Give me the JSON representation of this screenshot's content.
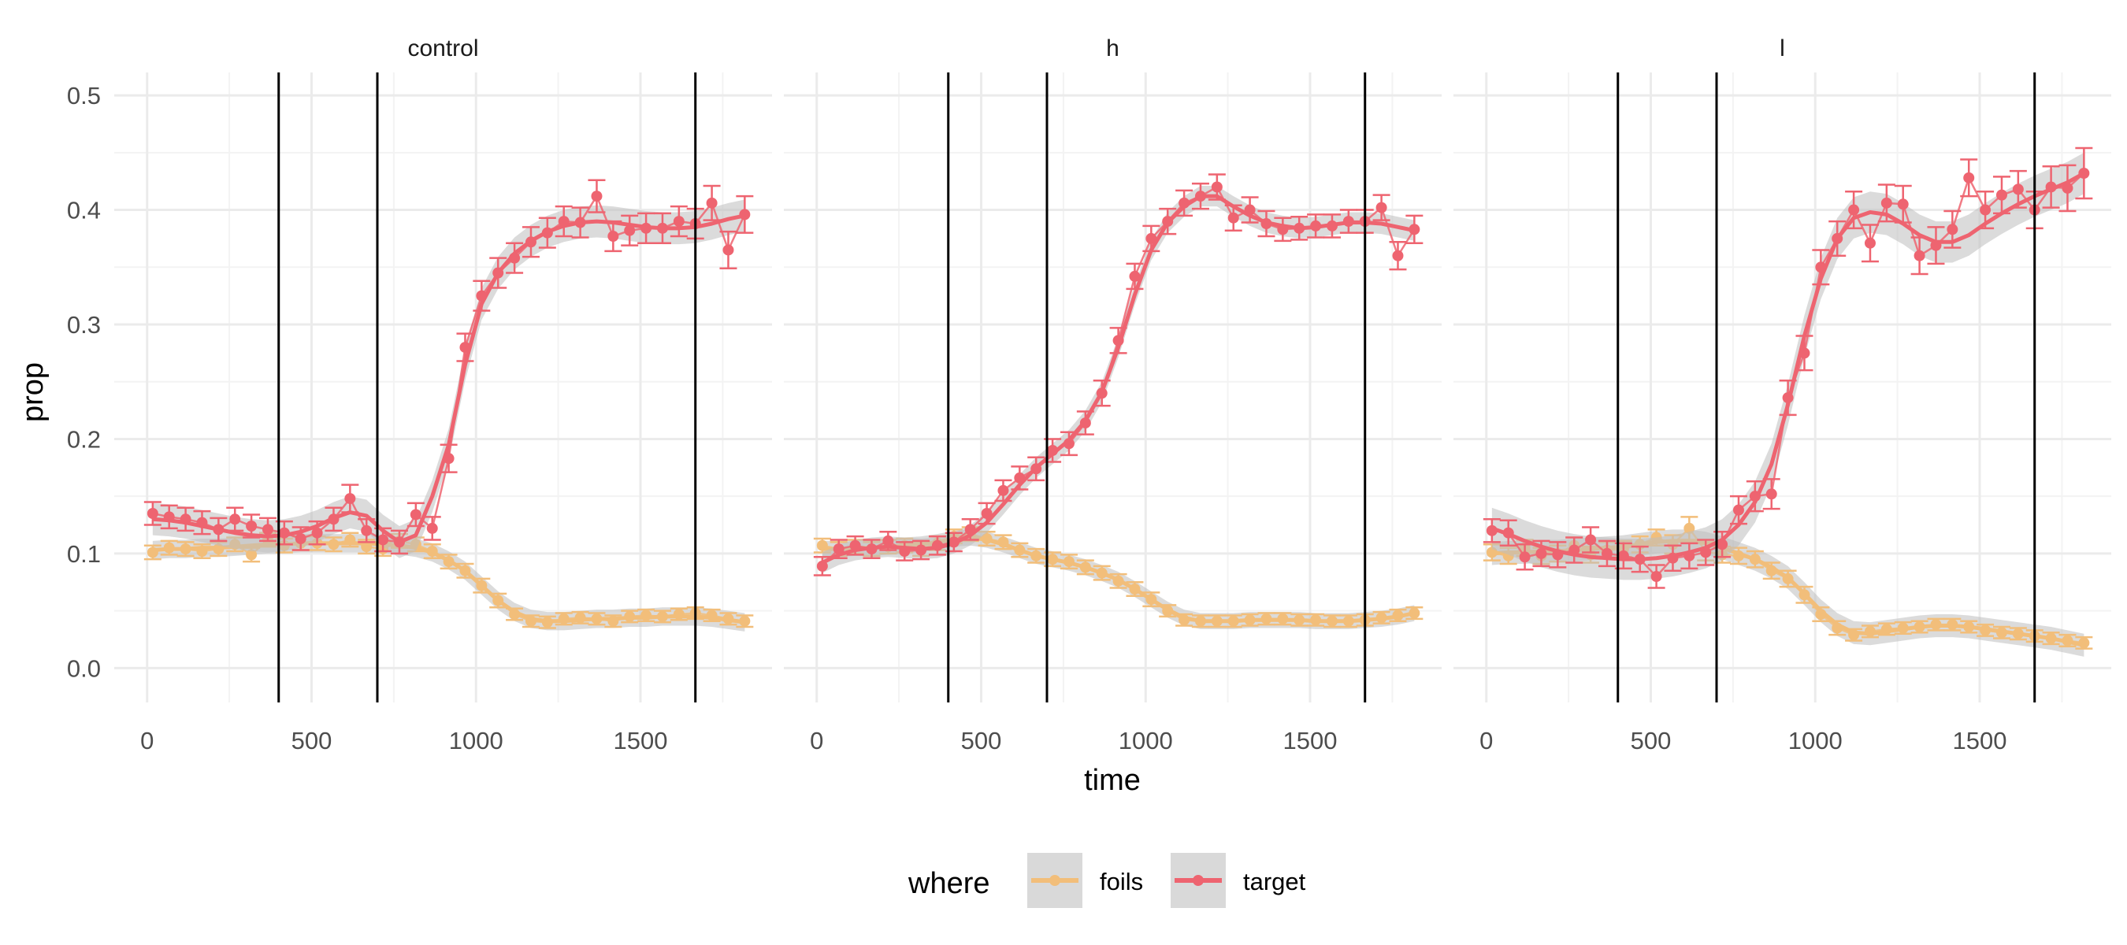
{
  "colors": {
    "background": "#ffffff",
    "grid_major": "#ebebeb",
    "grid_minor": "#f3f3f3",
    "vline": "#000000",
    "ribbon": "#bdbdbd",
    "foils": "#f2be7a",
    "target": "#ee6470"
  },
  "legend": {
    "title": "where",
    "items": [
      {
        "key": "foils",
        "label": "foils"
      },
      {
        "key": "target",
        "label": "target"
      }
    ]
  },
  "chart_data": {
    "type": "line",
    "xlabel": "time",
    "ylabel": "prop",
    "xlim": [
      -100,
      1900
    ],
    "ylim": [
      -0.03,
      0.52
    ],
    "x_ticks": [
      0,
      500,
      1000,
      1500
    ],
    "y_ticks": [
      0.0,
      0.1,
      0.2,
      0.3,
      0.4,
      0.5
    ],
    "y_tick_labels": [
      "0.0",
      "0.1",
      "0.2",
      "0.3",
      "0.4",
      "0.5"
    ],
    "grid": true,
    "legend_position": "bottom",
    "vlines": [
      400,
      700,
      1667
    ],
    "x": [
      17,
      67,
      117,
      167,
      217,
      267,
      317,
      367,
      417,
      467,
      517,
      567,
      617,
      667,
      717,
      767,
      817,
      867,
      917,
      967,
      1017,
      1067,
      1117,
      1167,
      1217,
      1267,
      1317,
      1367,
      1417,
      1467,
      1517,
      1567,
      1617,
      1667,
      1717,
      1767,
      1817
    ],
    "facets": [
      {
        "title": "control",
        "series": [
          {
            "name": "foils",
            "values": [
              0.101,
              0.105,
              0.104,
              0.102,
              0.104,
              0.108,
              0.099,
              0.112,
              0.107,
              0.109,
              0.109,
              0.108,
              0.112,
              0.106,
              0.104,
              0.111,
              0.108,
              0.102,
              0.093,
              0.085,
              0.072,
              0.059,
              0.047,
              0.041,
              0.04,
              0.043,
              0.044,
              0.043,
              0.041,
              0.045,
              0.046,
              0.045,
              0.047,
              0.048,
              0.046,
              0.043,
              0.041
            ],
            "err": [
              0.006,
              0.006,
              0.006,
              0.006,
              0.006,
              0.006,
              0.006,
              0.006,
              0.006,
              0.006,
              0.006,
              0.006,
              0.006,
              0.006,
              0.006,
              0.006,
              0.006,
              0.006,
              0.006,
              0.006,
              0.006,
              0.006,
              0.005,
              0.005,
              0.005,
              0.005,
              0.005,
              0.005,
              0.005,
              0.005,
              0.005,
              0.005,
              0.005,
              0.005,
              0.005,
              0.005,
              0.005
            ],
            "smooth": [
              0.103,
              0.104,
              0.104,
              0.105,
              0.105,
              0.106,
              0.107,
              0.108,
              0.108,
              0.109,
              0.109,
              0.109,
              0.109,
              0.109,
              0.108,
              0.107,
              0.105,
              0.101,
              0.094,
              0.085,
              0.072,
              0.059,
              0.049,
              0.043,
              0.041,
              0.041,
              0.042,
              0.043,
              0.043,
              0.044,
              0.044,
              0.045,
              0.045,
              0.045,
              0.044,
              0.042,
              0.04
            ],
            "band": 0.008
          },
          {
            "name": "target",
            "values": [
              0.135,
              0.132,
              0.13,
              0.127,
              0.121,
              0.13,
              0.124,
              0.121,
              0.118,
              0.113,
              0.118,
              0.13,
              0.148,
              0.12,
              0.112,
              0.11,
              0.134,
              0.122,
              0.183,
              0.28,
              0.325,
              0.345,
              0.358,
              0.372,
              0.38,
              0.39,
              0.389,
              0.412,
              0.377,
              0.382,
              0.384,
              0.384,
              0.39,
              0.388,
              0.406,
              0.365,
              0.396
            ],
            "err": [
              0.01,
              0.01,
              0.01,
              0.01,
              0.01,
              0.01,
              0.01,
              0.01,
              0.01,
              0.01,
              0.01,
              0.01,
              0.012,
              0.01,
              0.01,
              0.01,
              0.01,
              0.01,
              0.012,
              0.012,
              0.013,
              0.013,
              0.013,
              0.013,
              0.013,
              0.013,
              0.013,
              0.014,
              0.013,
              0.013,
              0.013,
              0.013,
              0.013,
              0.013,
              0.015,
              0.016,
              0.016
            ],
            "smooth": [
              0.13,
              0.129,
              0.127,
              0.124,
              0.121,
              0.118,
              0.116,
              0.115,
              0.116,
              0.119,
              0.124,
              0.131,
              0.136,
              0.133,
              0.12,
              0.11,
              0.116,
              0.15,
              0.195,
              0.265,
              0.318,
              0.345,
              0.362,
              0.373,
              0.381,
              0.386,
              0.389,
              0.39,
              0.389,
              0.387,
              0.385,
              0.384,
              0.384,
              0.385,
              0.388,
              0.392,
              0.395
            ],
            "band": 0.014
          }
        ]
      },
      {
        "title": "h",
        "series": [
          {
            "name": "foils",
            "values": [
              0.107,
              0.104,
              0.106,
              0.104,
              0.106,
              0.107,
              0.104,
              0.109,
              0.115,
              0.117,
              0.113,
              0.11,
              0.103,
              0.098,
              0.095,
              0.093,
              0.088,
              0.083,
              0.076,
              0.069,
              0.06,
              0.05,
              0.042,
              0.041,
              0.041,
              0.041,
              0.042,
              0.043,
              0.043,
              0.042,
              0.042,
              0.041,
              0.041,
              0.042,
              0.044,
              0.046,
              0.048
            ],
            "err": [
              0.006,
              0.006,
              0.006,
              0.006,
              0.006,
              0.006,
              0.006,
              0.006,
              0.006,
              0.006,
              0.006,
              0.006,
              0.006,
              0.006,
              0.006,
              0.006,
              0.006,
              0.006,
              0.006,
              0.006,
              0.006,
              0.005,
              0.005,
              0.005,
              0.005,
              0.005,
              0.005,
              0.005,
              0.005,
              0.005,
              0.005,
              0.005,
              0.005,
              0.005,
              0.005,
              0.005,
              0.005
            ],
            "smooth": [
              0.104,
              0.104,
              0.105,
              0.105,
              0.106,
              0.107,
              0.108,
              0.11,
              0.113,
              0.114,
              0.112,
              0.108,
              0.103,
              0.098,
              0.095,
              0.092,
              0.088,
              0.083,
              0.077,
              0.069,
              0.06,
              0.051,
              0.044,
              0.041,
              0.041,
              0.041,
              0.042,
              0.042,
              0.042,
              0.042,
              0.041,
              0.041,
              0.041,
              0.042,
              0.043,
              0.045,
              0.048
            ],
            "band": 0.007
          },
          {
            "name": "target",
            "values": [
              0.089,
              0.104,
              0.107,
              0.104,
              0.111,
              0.102,
              0.103,
              0.107,
              0.11,
              0.121,
              0.135,
              0.155,
              0.166,
              0.174,
              0.19,
              0.196,
              0.214,
              0.24,
              0.286,
              0.342,
              0.375,
              0.39,
              0.406,
              0.412,
              0.42,
              0.393,
              0.4,
              0.388,
              0.383,
              0.384,
              0.386,
              0.386,
              0.39,
              0.39,
              0.402,
              0.36,
              0.383
            ],
            "err": [
              0.008,
              0.008,
              0.008,
              0.008,
              0.008,
              0.008,
              0.008,
              0.008,
              0.008,
              0.009,
              0.009,
              0.009,
              0.01,
              0.01,
              0.01,
              0.01,
              0.01,
              0.011,
              0.011,
              0.011,
              0.011,
              0.011,
              0.011,
              0.011,
              0.011,
              0.011,
              0.011,
              0.011,
              0.01,
              0.01,
              0.01,
              0.01,
              0.01,
              0.01,
              0.011,
              0.012,
              0.012
            ],
            "smooth": [
              0.092,
              0.099,
              0.103,
              0.105,
              0.106,
              0.105,
              0.104,
              0.105,
              0.109,
              0.116,
              0.127,
              0.143,
              0.16,
              0.175,
              0.187,
              0.199,
              0.216,
              0.241,
              0.28,
              0.326,
              0.365,
              0.389,
              0.403,
              0.412,
              0.412,
              0.403,
              0.395,
              0.389,
              0.386,
              0.384,
              0.385,
              0.387,
              0.389,
              0.389,
              0.388,
              0.385,
              0.382
            ],
            "band": 0.009
          }
        ]
      },
      {
        "title": "l",
        "series": [
          {
            "name": "foils",
            "values": [
              0.101,
              0.098,
              0.105,
              0.098,
              0.1,
              0.107,
              0.099,
              0.103,
              0.104,
              0.108,
              0.114,
              0.108,
              0.122,
              0.102,
              0.099,
              0.098,
              0.095,
              0.085,
              0.078,
              0.064,
              0.047,
              0.035,
              0.029,
              0.032,
              0.034,
              0.035,
              0.036,
              0.038,
              0.038,
              0.036,
              0.033,
              0.031,
              0.03,
              0.028,
              0.026,
              0.024,
              0.022
            ],
            "err": [
              0.007,
              0.007,
              0.007,
              0.007,
              0.007,
              0.007,
              0.007,
              0.007,
              0.007,
              0.007,
              0.007,
              0.008,
              0.01,
              0.008,
              0.007,
              0.007,
              0.007,
              0.007,
              0.007,
              0.007,
              0.006,
              0.006,
              0.005,
              0.005,
              0.005,
              0.005,
              0.005,
              0.005,
              0.005,
              0.005,
              0.005,
              0.005,
              0.005,
              0.005,
              0.005,
              0.005,
              0.005
            ],
            "smooth": [
              0.1,
              0.101,
              0.101,
              0.102,
              0.102,
              0.103,
              0.104,
              0.105,
              0.106,
              0.108,
              0.11,
              0.111,
              0.111,
              0.109,
              0.105,
              0.1,
              0.095,
              0.088,
              0.079,
              0.065,
              0.05,
              0.038,
              0.031,
              0.03,
              0.032,
              0.034,
              0.036,
              0.037,
              0.037,
              0.036,
              0.034,
              0.032,
              0.03,
              0.028,
              0.026,
              0.023,
              0.02
            ],
            "band": 0.01
          },
          {
            "name": "target",
            "values": [
              0.12,
              0.118,
              0.097,
              0.1,
              0.099,
              0.103,
              0.112,
              0.1,
              0.098,
              0.095,
              0.08,
              0.096,
              0.098,
              0.101,
              0.108,
              0.138,
              0.15,
              0.152,
              0.236,
              0.275,
              0.35,
              0.375,
              0.4,
              0.371,
              0.406,
              0.405,
              0.36,
              0.369,
              0.383,
              0.428,
              0.4,
              0.413,
              0.418,
              0.4,
              0.42,
              0.419,
              0.432
            ],
            "err": [
              0.01,
              0.011,
              0.011,
              0.011,
              0.011,
              0.011,
              0.011,
              0.011,
              0.011,
              0.011,
              0.01,
              0.011,
              0.011,
              0.011,
              0.011,
              0.012,
              0.013,
              0.013,
              0.015,
              0.015,
              0.015,
              0.015,
              0.016,
              0.016,
              0.016,
              0.016,
              0.016,
              0.016,
              0.016,
              0.016,
              0.016,
              0.016,
              0.016,
              0.016,
              0.018,
              0.02,
              0.022
            ],
            "smooth": [
              0.122,
              0.117,
              0.111,
              0.106,
              0.102,
              0.099,
              0.097,
              0.096,
              0.095,
              0.095,
              0.096,
              0.098,
              0.101,
              0.105,
              0.112,
              0.125,
              0.145,
              0.178,
              0.23,
              0.29,
              0.34,
              0.375,
              0.393,
              0.398,
              0.396,
              0.388,
              0.378,
              0.372,
              0.372,
              0.378,
              0.388,
              0.397,
              0.405,
              0.412,
              0.418,
              0.424,
              0.432
            ],
            "band": 0.018
          }
        ]
      }
    ]
  }
}
